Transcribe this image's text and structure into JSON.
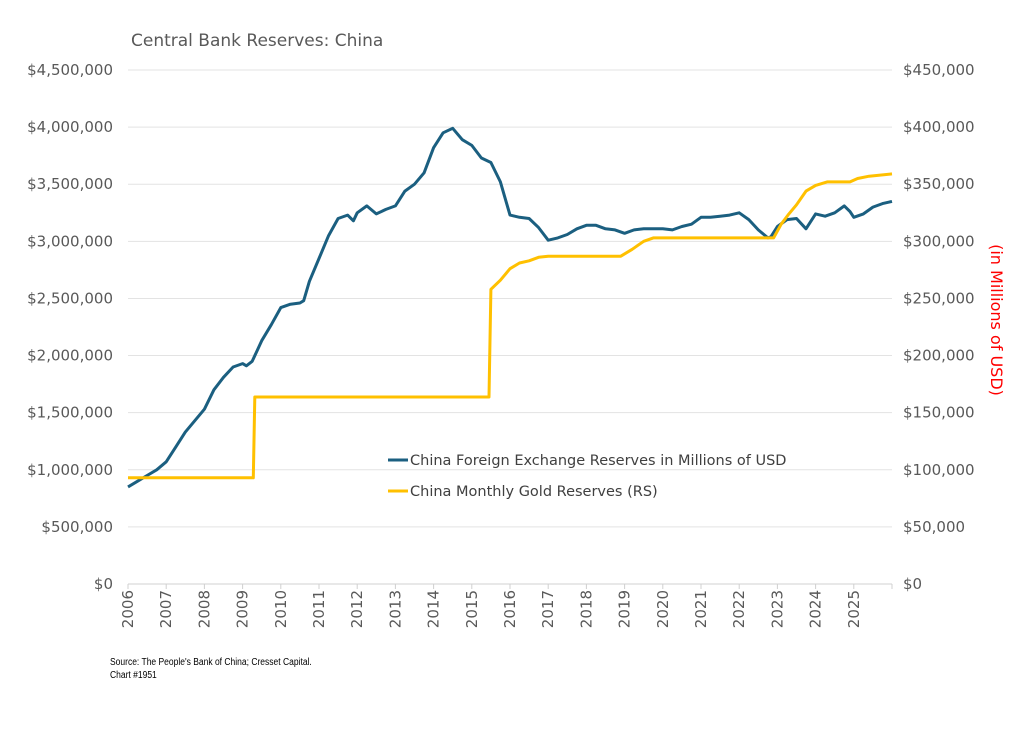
{
  "chart_data": {
    "type": "line",
    "title": "Central Bank Reserves: China",
    "right_ylabel": "(in Millions of USD)",
    "xlim": [
      2006,
      2026
    ],
    "x_ticks": [
      "2006",
      "2007",
      "2008",
      "2009",
      "2010",
      "2011",
      "2012",
      "2013",
      "2014",
      "2015",
      "2016",
      "2017",
      "2018",
      "2019",
      "2020",
      "2021",
      "2022",
      "2023",
      "2024",
      "2025"
    ],
    "left_axis": {
      "ylim": [
        0,
        4500000
      ],
      "ticks": [
        "$0",
        "$500,000",
        "$1,000,000",
        "$1,500,000",
        "$2,000,000",
        "$2,500,000",
        "$3,000,000",
        "$3,500,000",
        "$4,000,000",
        "$4,500,000"
      ]
    },
    "right_axis": {
      "ylim": [
        0,
        450000
      ],
      "ticks": [
        "$0",
        "$50,000",
        "$100,000",
        "$150,000",
        "$200,000",
        "$250,000",
        "$300,000",
        "$350,000",
        "$400,000",
        "$450,000"
      ]
    },
    "grid": true,
    "legend_position": "center-right",
    "series": [
      {
        "name": "China Foreign Exchange Reserves in Millions of USD",
        "axis": "left",
        "color": "#1b5f80",
        "x": [
          2006.0,
          2006.25,
          2006.5,
          2006.75,
          2007.0,
          2007.25,
          2007.5,
          2007.75,
          2008.0,
          2008.25,
          2008.5,
          2008.75,
          2009.0,
          2009.1,
          2009.25,
          2009.5,
          2009.75,
          2010.0,
          2010.25,
          2010.5,
          2010.6,
          2010.75,
          2011.0,
          2011.25,
          2011.5,
          2011.75,
          2011.9,
          2012.0,
          2012.25,
          2012.5,
          2012.75,
          2013.0,
          2013.25,
          2013.5,
          2013.75,
          2014.0,
          2014.25,
          2014.5,
          2014.75,
          2015.0,
          2015.25,
          2015.5,
          2015.75,
          2016.0,
          2016.25,
          2016.5,
          2016.75,
          2017.0,
          2017.25,
          2017.5,
          2017.75,
          2018.0,
          2018.25,
          2018.5,
          2018.75,
          2019.0,
          2019.25,
          2019.5,
          2019.75,
          2020.0,
          2020.25,
          2020.5,
          2020.75,
          2021.0,
          2021.25,
          2021.5,
          2021.75,
          2022.0,
          2022.25,
          2022.5,
          2022.75,
          2022.83,
          2023.0,
          2023.25,
          2023.5,
          2023.75,
          2024.0,
          2024.25,
          2024.5,
          2024.75,
          2024.9,
          2025.0,
          2025.25,
          2025.5,
          2025.75,
          2026.0
        ],
        "y": [
          850000,
          900000,
          950000,
          1000000,
          1070000,
          1200000,
          1330000,
          1430000,
          1530000,
          1700000,
          1810000,
          1900000,
          1930000,
          1910000,
          1950000,
          2130000,
          2270000,
          2420000,
          2450000,
          2460000,
          2480000,
          2650000,
          2850000,
          3050000,
          3200000,
          3230000,
          3180000,
          3250000,
          3310000,
          3240000,
          3280000,
          3310000,
          3440000,
          3500000,
          3600000,
          3820000,
          3950000,
          3990000,
          3890000,
          3840000,
          3730000,
          3690000,
          3520000,
          3230000,
          3210000,
          3200000,
          3120000,
          3010000,
          3030000,
          3060000,
          3110000,
          3140000,
          3140000,
          3110000,
          3100000,
          3070000,
          3100000,
          3110000,
          3110000,
          3110000,
          3100000,
          3130000,
          3150000,
          3210000,
          3210000,
          3220000,
          3230000,
          3250000,
          3190000,
          3100000,
          3030000,
          3040000,
          3130000,
          3190000,
          3200000,
          3110000,
          3240000,
          3220000,
          3250000,
          3310000,
          3260000,
          3210000,
          3240000,
          3300000,
          3330000,
          3350000
        ]
      },
      {
        "name": "China Monthly Gold Reserves (RS)",
        "axis": "right",
        "color": "#ffc000",
        "x": [
          2006.0,
          2009.28,
          2009.32,
          2015.45,
          2015.5,
          2015.75,
          2016.0,
          2016.25,
          2016.5,
          2016.75,
          2017.0,
          2018.9,
          2019.2,
          2019.5,
          2019.75,
          2022.9,
          2023.1,
          2023.3,
          2023.5,
          2023.75,
          2024.0,
          2024.3,
          2024.9,
          2025.1,
          2025.4,
          2026.0
        ],
        "y": [
          93000,
          93000,
          163700,
          163700,
          258000,
          266000,
          276000,
          281000,
          283000,
          286000,
          287000,
          287000,
          293000,
          300000,
          303000,
          303000,
          315000,
          324000,
          332000,
          344000,
          349000,
          352000,
          352000,
          355000,
          357000,
          359000
        ]
      }
    ],
    "source": "Source: The People's Bank of China; Cresset Capital.",
    "chart_number": "Chart #1951"
  }
}
